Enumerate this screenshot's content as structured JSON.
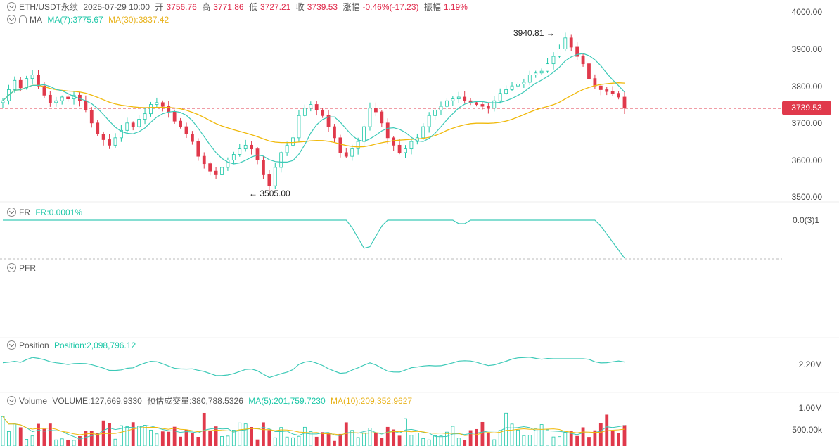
{
  "header": {
    "symbol": "ETH/USDT永续",
    "datetime": "2025-07-29 10:00",
    "open_label": "开",
    "open": "3756.76",
    "high_label": "高",
    "high": "3771.86",
    "low_label": "低",
    "low": "3727.21",
    "close_label": "收",
    "close": "3739.53",
    "change_label": "涨幅",
    "change": "-0.46%(-17.23)",
    "amp_label": "振幅",
    "amp": "1.19%"
  },
  "ma_legend": {
    "name": "MA",
    "ma7": "MA(7):3775.67",
    "ma30": "MA(30):3837.42"
  },
  "fr_legend": {
    "name": "FR",
    "value": "FR:0.0001%",
    "axis_label": "0.0(3)1"
  },
  "pfr_legend": {
    "name": "PFR"
  },
  "position_legend": {
    "name": "Position",
    "value": "Position:2,098,796.12",
    "axis_label": "2.20M"
  },
  "volume_legend": {
    "name": "Volume",
    "volume": "VOLUME:127,669.9330",
    "est": "预估成交量:380,788.5326",
    "ma5": "MA(5):201,759.7230",
    "ma10": "MA(10):209,352.9627",
    "axis_labels": [
      "1.00M",
      "500.00k"
    ]
  },
  "price_axis": [
    "4000.00",
    "3900.00",
    "3800.00",
    "3700.00",
    "3600.00",
    "3500.00"
  ],
  "current_price": "3739.53",
  "annotations": {
    "high": "3940.81",
    "low": "3505.00"
  },
  "colors": {
    "up": "#1cc7a7",
    "down": "#e0394b",
    "ma7": "#3cc9b7",
    "ma30": "#f0b90b",
    "line": "#3cc9b7"
  },
  "chart_data": {
    "type": "candlestick",
    "symbol": "ETH/USDT永续",
    "ylim": [
      3480,
      4010
    ],
    "price_ticks": [
      4000,
      3900,
      3800,
      3700,
      3600,
      3500
    ],
    "current_price": 3739.53,
    "high_marker": 3940.81,
    "low_marker": 3505.0,
    "close_series": [
      3760,
      3790,
      3815,
      3795,
      3820,
      3830,
      3800,
      3775,
      3755,
      3760,
      3770,
      3765,
      3775,
      3760,
      3735,
      3700,
      3670,
      3655,
      3640,
      3660,
      3680,
      3700,
      3690,
      3710,
      3725,
      3750,
      3755,
      3745,
      3730,
      3705,
      3690,
      3670,
      3650,
      3610,
      3590,
      3570,
      3560,
      3580,
      3600,
      3615,
      3630,
      3640,
      3630,
      3600,
      3560,
      3530,
      3580,
      3620,
      3640,
      3660,
      3720,
      3740,
      3750,
      3735,
      3720,
      3690,
      3660,
      3620,
      3610,
      3630,
      3650,
      3690,
      3740,
      3730,
      3700,
      3660,
      3640,
      3620,
      3630,
      3650,
      3660,
      3690,
      3720,
      3735,
      3745,
      3760,
      3765,
      3770,
      3760,
      3755,
      3750,
      3745,
      3740,
      3760,
      3780,
      3790,
      3800,
      3805,
      3810,
      3830,
      3835,
      3840,
      3860,
      3880,
      3900,
      3930,
      3905,
      3880,
      3860,
      3820,
      3800,
      3790,
      3785,
      3780,
      3770,
      3740
    ],
    "ma7": 3775.67,
    "ma30": 3837.42
  }
}
